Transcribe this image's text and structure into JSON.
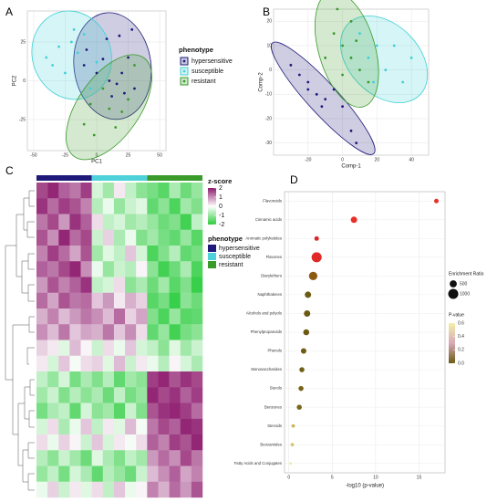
{
  "chart_data": [
    {
      "type": "scatter",
      "panel": "A",
      "x_label": "PC1",
      "y_label": "PC2",
      "legend_title": "phenotype",
      "xlim": [
        -55,
        55
      ],
      "xticks": [
        -50,
        -25,
        0,
        25,
        50
      ],
      "ylim": [
        -45,
        45
      ],
      "yticks": [
        -25,
        0,
        25
      ],
      "grid": true,
      "ellipses": true,
      "series": [
        {
          "name": "hypersensitive",
          "color": "#1f1a7a",
          "x": [
            8,
            18,
            28,
            5,
            -8,
            -10,
            0,
            10,
            16,
            20,
            22,
            30,
            25,
            12
          ],
          "y": [
            27,
            29,
            33,
            14,
            20,
            10,
            5,
            0,
            -2,
            5,
            -8,
            -5,
            15,
            -10
          ]
        },
        {
          "name": "susceptible",
          "color": "#3fd0d6",
          "x": [
            -30,
            -20,
            -10,
            -35,
            -15,
            -25,
            -5,
            -40,
            0,
            -18
          ],
          "y": [
            22,
            25,
            30,
            10,
            18,
            5,
            -5,
            15,
            12,
            33
          ]
        },
        {
          "name": "resistant",
          "color": "#3a9a2a",
          "x": [
            -5,
            10,
            20,
            -10,
            5,
            15,
            25,
            -2,
            30
          ],
          "y": [
            -15,
            -18,
            -20,
            -28,
            -5,
            -30,
            -12,
            -35,
            10
          ]
        }
      ]
    },
    {
      "type": "scatter",
      "panel": "B",
      "x_label": "Comp-1",
      "y_label": "Comp-2",
      "xlim": [
        -40,
        50
      ],
      "xticks": [
        -20,
        0,
        20,
        40
      ],
      "ylim": [
        -35,
        25
      ],
      "yticks": [
        -30,
        -20,
        -10,
        0,
        10,
        20
      ],
      "grid": true,
      "ellipses": true,
      "series": [
        {
          "name": "hypersensitive",
          "color": "#1f1a7a",
          "x": [
            -30,
            -25,
            -20,
            -15,
            -10,
            -5,
            -12,
            -20,
            5,
            8,
            0
          ],
          "y": [
            2,
            -2,
            -5,
            -10,
            -12,
            -8,
            -15,
            -8,
            -25,
            -30,
            -15
          ]
        },
        {
          "name": "susceptible",
          "color": "#3fd0d6",
          "x": [
            20,
            30,
            25,
            15,
            40,
            10,
            35,
            18
          ],
          "y": [
            10,
            10,
            0,
            5,
            5,
            15,
            -5,
            -5
          ]
        },
        {
          "name": "resistant",
          "color": "#3a9a2a",
          "x": [
            -5,
            0,
            5,
            10,
            -10,
            5,
            0,
            15,
            8,
            -3
          ],
          "y": [
            15,
            10,
            5,
            0,
            5,
            20,
            -2,
            -5,
            12,
            25
          ]
        }
      ]
    },
    {
      "type": "heatmap",
      "panel": "C",
      "legend_title": "z-score",
      "zlim": [
        -2,
        2
      ],
      "zticks": [
        2,
        1,
        0,
        -1,
        -2
      ],
      "colorscale": {
        "low": "#2ecc40",
        "mid": "#ffffff",
        "high": "#8e1c6e"
      },
      "annotation_title": "phenotype",
      "groups": [
        {
          "name": "hypersensitive",
          "color": "#1f1a7a",
          "columns": 5
        },
        {
          "name": "susceptible",
          "color": "#4fd1d9",
          "columns": 5
        },
        {
          "name": "resistant",
          "color": "#3a9a2a",
          "columns": 5
        }
      ],
      "values": [
        [
          1.6,
          1.9,
          1.4,
          1.2,
          1.7,
          -0.4,
          -0.9,
          0.2,
          -0.6,
          -1.1,
          -1.3,
          -1.6,
          -0.8,
          -1.4,
          -1.0
        ],
        [
          1.8,
          1.3,
          1.7,
          1.5,
          1.1,
          -0.7,
          -0.2,
          -1.0,
          -0.5,
          -0.3,
          -1.5,
          -1.1,
          -1.7,
          -0.9,
          -1.2
        ],
        [
          1.2,
          1.6,
          0.9,
          1.8,
          1.4,
          0.3,
          -0.6,
          -0.4,
          -0.9,
          -0.7,
          -1.0,
          -1.4,
          -1.2,
          -1.8,
          -0.6
        ],
        [
          1.5,
          1.0,
          1.9,
          1.3,
          1.6,
          -0.5,
          0.4,
          -0.8,
          -0.2,
          -1.2,
          -0.9,
          -1.3,
          -1.5,
          -1.0,
          -1.6
        ],
        [
          1.1,
          1.7,
          1.3,
          0.8,
          1.5,
          -0.9,
          -0.3,
          -0.6,
          0.5,
          -0.4,
          -1.7,
          -1.2,
          -0.7,
          -1.5,
          -1.3
        ],
        [
          1.4,
          1.2,
          1.6,
          1.9,
          1.0,
          -0.2,
          -1.0,
          -0.5,
          -0.7,
          0.1,
          -1.1,
          -1.8,
          -1.4,
          -0.8,
          -1.7
        ],
        [
          0.9,
          1.5,
          1.1,
          1.4,
          1.8,
          -0.6,
          -0.4,
          0.3,
          -1.1,
          -0.8,
          -1.4,
          -0.9,
          -1.6,
          -1.2,
          -1.9
        ],
        [
          1.3,
          0.8,
          1.5,
          1.2,
          1.3,
          0.5,
          0.9,
          0.2,
          0.7,
          0.4,
          -1.6,
          -1.3,
          -1.9,
          -1.1,
          -1.4
        ],
        [
          0.7,
          1.1,
          0.6,
          0.9,
          1.2,
          1.0,
          0.6,
          1.3,
          0.4,
          0.8,
          -1.2,
          -1.7,
          -1.0,
          -1.6,
          -1.5
        ],
        [
          1.0,
          0.6,
          1.2,
          0.5,
          0.8,
          0.7,
          1.2,
          0.5,
          1.0,
          0.3,
          -1.5,
          -1.0,
          -1.8,
          -1.3,
          -1.1
        ],
        [
          0.4,
          0.2,
          -0.3,
          0.6,
          0.1,
          -0.5,
          0.3,
          -0.2,
          0.5,
          -0.4,
          -0.6,
          -1.1,
          -0.3,
          -0.9,
          -0.5
        ],
        [
          0.2,
          -0.4,
          0.5,
          -0.1,
          0.3,
          0.4,
          -0.3,
          0.6,
          -0.5,
          0.2,
          -0.2,
          -0.7,
          0.1,
          -0.4,
          -0.8
        ],
        [
          -0.6,
          -1.0,
          -0.4,
          -1.3,
          -0.8,
          -1.2,
          -0.7,
          -1.5,
          -0.9,
          -1.1,
          1.7,
          1.9,
          1.5,
          1.8,
          1.6
        ],
        [
          -0.9,
          -0.5,
          -1.2,
          -0.7,
          -1.1,
          -0.8,
          -1.4,
          -0.6,
          -1.3,
          -1.0,
          1.9,
          1.6,
          1.8,
          1.4,
          1.7
        ],
        [
          -1.3,
          -0.8,
          -0.6,
          -1.5,
          -0.4,
          -1.1,
          -0.9,
          -1.6,
          -0.5,
          -1.2,
          1.5,
          1.8,
          1.9,
          1.7,
          1.3
        ],
        [
          -0.4,
          0.3,
          -0.8,
          -0.2,
          0.5,
          -0.6,
          0.2,
          -0.3,
          0.6,
          -0.1,
          1.2,
          1.6,
          1.4,
          1.9,
          1.8
        ],
        [
          0.3,
          -0.2,
          0.4,
          0.1,
          -0.5,
          0.5,
          -0.4,
          0.2,
          -0.1,
          0.3,
          1.4,
          1.1,
          1.7,
          1.5,
          1.9
        ],
        [
          -0.7,
          -1.1,
          -0.5,
          -0.9,
          -1.4,
          -0.3,
          -0.8,
          -1.2,
          -0.6,
          -0.9,
          0.9,
          1.3,
          1.0,
          1.6,
          1.2
        ],
        [
          -1.0,
          -0.6,
          -1.3,
          -0.4,
          -0.8,
          -1.5,
          -0.7,
          -1.0,
          -1.4,
          -0.5,
          0.6,
          1.0,
          1.4,
          0.8,
          1.1
        ],
        [
          -0.2,
          0.4,
          -0.5,
          0.2,
          -0.3,
          0.3,
          -0.6,
          0.5,
          -0.2,
          0.1,
          1.1,
          0.7,
          1.3,
          0.9,
          1.5
        ]
      ]
    },
    {
      "type": "dot",
      "panel": "D",
      "x_label": "-log10 (p-value)",
      "xlim": [
        -0.5,
        18
      ],
      "xticks": [
        0,
        5,
        10,
        15
      ],
      "grid": true,
      "categories": [
        "Flavonoids",
        "Cinnamic acids",
        "Aromatic polyketides",
        "Flavones",
        "Diarylethers",
        "Naphthalenes",
        "Alcohols and polyols",
        "Phenylpropanoids",
        "Phenols",
        "Monosaccharides",
        "Sterols",
        "Benzenes",
        "Steroids",
        "Benzamides",
        "Fatty Acids and Conjugates"
      ],
      "values": [
        17,
        7.5,
        3.2,
        3.2,
        2.8,
        2.2,
        2.1,
        2.0,
        1.7,
        1.5,
        1.4,
        1.2,
        0.5,
        0.4,
        0.2
      ],
      "sizes": [
        200,
        400,
        200,
        1000,
        700,
        400,
        400,
        350,
        300,
        250,
        250,
        250,
        120,
        120,
        60
      ],
      "colors": [
        "#e8302a",
        "#e8302a",
        "#d9262a",
        "#e02a28",
        "#8b5a14",
        "#6b5a12",
        "#6b5a12",
        "#6b5a12",
        "#6e5c14",
        "#726016",
        "#766418",
        "#7a681a",
        "#c8b860",
        "#d6c878",
        "#eee6a4"
      ],
      "size_legend_title": "Enrichment Ratio",
      "size_legend": [
        500,
        1000
      ],
      "color_legend": {
        "title": "P-value",
        "lim": [
          0,
          0.6
        ],
        "ticks": [
          {
            "value": 0,
            "label": "0.0"
          },
          0.2,
          0.4,
          0.6
        ],
        "stops": [
          "#6b5b12",
          "#d9a8b8",
          "#f3efa8"
        ]
      }
    }
  ]
}
